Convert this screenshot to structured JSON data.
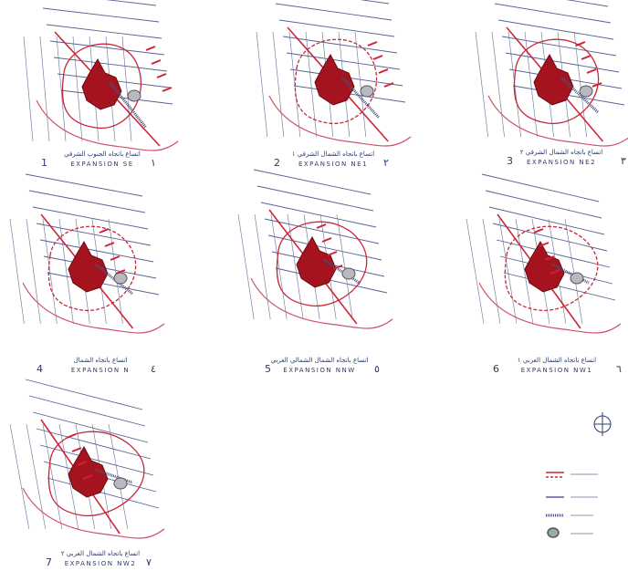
{
  "panels": [
    {
      "number": "1",
      "caption_ar": "اتساع باتجاه الجنوب الشرقي",
      "caption_en": "EXPANSION SE",
      "number_ar": "١"
    },
    {
      "number": "2",
      "caption_ar": "اتساع باتجاه الشمال الشرقي ١",
      "caption_en": "EXPANSION NE1",
      "number_ar": "٢"
    },
    {
      "number": "3",
      "caption_ar": "اتساع باتجاه الشمال الشرقي ٢",
      "caption_en": "EXPANSION NE2",
      "number_ar": "٣"
    },
    {
      "number": "4",
      "caption_ar": "اتساع باتجاه الشمال",
      "caption_en": "EXPANSION N",
      "number_ar": "٤"
    },
    {
      "number": "5",
      "caption_ar": "اتساع باتجاه الشمال الشمالي الغربي",
      "caption_en": "EXPANSION NNW",
      "number_ar": "٥"
    },
    {
      "number": "6",
      "caption_ar": "اتساع باتجاه الشمال الغربي ١",
      "caption_en": "EXPANSION NW1",
      "number_ar": "٦"
    },
    {
      "number": "7",
      "caption_ar": "اتساع باتجاه الشمال الغربي ٢",
      "caption_en": "EXPANSION NW2",
      "number_ar": "٧"
    }
  ]
}
